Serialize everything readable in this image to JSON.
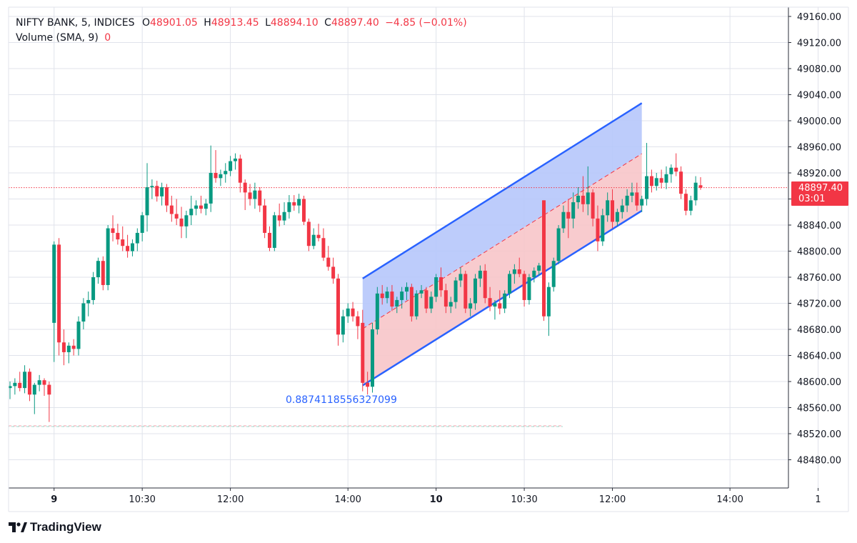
{
  "legend": {
    "symbol": "NIFTY BANK, 5, INDICES",
    "o_label": "O",
    "o_value": "48901.05",
    "h_label": "H",
    "h_value": "48913.45",
    "l_label": "L",
    "l_value": "48894.10",
    "c_label": "C",
    "c_value": "48897.40",
    "change": "−4.85 (−0.01%)",
    "volume_label": "Volume (SMA, 9)",
    "volume_value": "0"
  },
  "price_tag": {
    "price": "48897.40",
    "timer": "03:01"
  },
  "channel_label": "0.8874118556327099",
  "brand": "TradingView",
  "colors": {
    "up": "#089981",
    "down": "#f23645",
    "channel_line": "#2962ff",
    "channel_upper_fill": "#b6c7fb",
    "channel_lower_fill": "#f7c5c9",
    "grid": "#e0e3eb",
    "price_line": "#f23645",
    "text": "#131722"
  },
  "chart_data": {
    "type": "candlestick",
    "symbol": "NIFTY BANK",
    "interval": "5",
    "y_axis_ticks": [
      49160,
      49120,
      49080,
      49040,
      49000,
      48960,
      48920,
      48880,
      48840,
      48800,
      48760,
      48720,
      48680,
      48640,
      48600,
      48560,
      48520,
      48480
    ],
    "y_axis_labels": [
      "49160.00",
      "49120.00",
      "49080.00",
      "49040.00",
      "49000.00",
      "48960.00",
      "48920.00",
      "48880.00",
      "48840.00",
      "48800.00",
      "48760.00",
      "48720.00",
      "48680.00",
      "48640.00",
      "48600.00",
      "48560.00",
      "48520.00",
      "48480.00"
    ],
    "x_axis_labels": [
      {
        "label": "9",
        "bold": true,
        "bar": 9
      },
      {
        "label": "10:30",
        "bold": false,
        "bar": 27
      },
      {
        "label": "12:00",
        "bold": false,
        "bar": 45
      },
      {
        "label": "14:00",
        "bold": false,
        "bar": 69
      },
      {
        "label": "10",
        "bold": true,
        "bar": 87
      },
      {
        "label": "10:30",
        "bold": false,
        "bar": 105
      },
      {
        "label": "12:00",
        "bold": false,
        "bar": 123
      },
      {
        "label": "14:00",
        "bold": false,
        "bar": 147
      },
      {
        "label": "1",
        "bold": false,
        "bar": 165
      }
    ],
    "last_price": 48897.4,
    "dashed_level": 48532,
    "candles": [
      [
        48590,
        48600,
        48573,
        48593
      ],
      [
        48593,
        48605,
        48580,
        48598
      ],
      [
        48598,
        48615,
        48585,
        48590
      ],
      [
        48590,
        48625,
        48582,
        48615
      ],
      [
        48615,
        48620,
        48570,
        48580
      ],
      [
        48580,
        48598,
        48550,
        48595
      ],
      [
        48595,
        48610,
        48585,
        48602
      ],
      [
        48602,
        48605,
        48578,
        48595
      ],
      [
        48595,
        48600,
        48538,
        48580
      ],
      [
        48690,
        48815,
        48630,
        48810
      ],
      [
        48810,
        48820,
        48640,
        48660
      ],
      [
        48660,
        48680,
        48625,
        48645
      ],
      [
        48645,
        48660,
        48628,
        48655
      ],
      [
        48655,
        48665,
        48640,
        48650
      ],
      [
        48650,
        48700,
        48640,
        48692
      ],
      [
        48692,
        48728,
        48680,
        48720
      ],
      [
        48720,
        48738,
        48700,
        48725
      ],
      [
        48725,
        48768,
        48718,
        48760
      ],
      [
        48760,
        48790,
        48750,
        48785
      ],
      [
        48785,
        48792,
        48740,
        48748
      ],
      [
        48748,
        48840,
        48740,
        48835
      ],
      [
        48835,
        48855,
        48815,
        48828
      ],
      [
        48828,
        48842,
        48810,
        48818
      ],
      [
        48818,
        48838,
        48800,
        48808
      ],
      [
        48808,
        48825,
        48790,
        48800
      ],
      [
        48800,
        48818,
        48792,
        48812
      ],
      [
        48812,
        48835,
        48800,
        48828
      ],
      [
        48828,
        48860,
        48815,
        48855
      ],
      [
        48855,
        48935,
        48830,
        48898
      ],
      [
        48898,
        48910,
        48880,
        48900
      ],
      [
        48900,
        48908,
        48876,
        48884
      ],
      [
        48884,
        48905,
        48870,
        48898
      ],
      [
        48898,
        48903,
        48860,
        48870
      ],
      [
        48870,
        48885,
        48845,
        48857
      ],
      [
        48857,
        48880,
        48840,
        48850
      ],
      [
        48850,
        48868,
        48820,
        48838
      ],
      [
        48838,
        48862,
        48820,
        48855
      ],
      [
        48855,
        48885,
        48840,
        48865
      ],
      [
        48865,
        48878,
        48855,
        48870
      ],
      [
        48870,
        48885,
        48858,
        48865
      ],
      [
        48865,
        48880,
        48855,
        48873
      ],
      [
        48873,
        48962,
        48860,
        48920
      ],
      [
        48920,
        48955,
        48905,
        48912
      ],
      [
        48912,
        48925,
        48900,
        48918
      ],
      [
        48918,
        48935,
        48905,
        48923
      ],
      [
        48923,
        48946,
        48915,
        48938
      ],
      [
        48938,
        48950,
        48925,
        48942
      ],
      [
        48942,
        48948,
        48890,
        48905
      ],
      [
        48905,
        48910,
        48863,
        48890
      ],
      [
        48890,
        48903,
        48870,
        48880
      ],
      [
        48880,
        48905,
        48865,
        48893
      ],
      [
        48893,
        48898,
        48860,
        48870
      ],
      [
        48870,
        48880,
        48820,
        48828
      ],
      [
        48828,
        48838,
        48800,
        48805
      ],
      [
        48805,
        48860,
        48800,
        48855
      ],
      [
        48855,
        48873,
        48838,
        48847
      ],
      [
        48847,
        48875,
        48840,
        48860
      ],
      [
        48860,
        48886,
        48850,
        48875
      ],
      [
        48875,
        48886,
        48862,
        48870
      ],
      [
        48870,
        48888,
        48858,
        48880
      ],
      [
        48880,
        48885,
        48840,
        48845
      ],
      [
        48845,
        48850,
        48800,
        48808
      ],
      [
        48808,
        48835,
        48803,
        48825
      ],
      [
        48825,
        48842,
        48815,
        48820
      ],
      [
        48820,
        48835,
        48785,
        48790
      ],
      [
        48790,
        48808,
        48770,
        48776
      ],
      [
        48776,
        48790,
        48750,
        48758
      ],
      [
        48758,
        48765,
        48655,
        48672
      ],
      [
        48672,
        48710,
        48660,
        48700
      ],
      [
        48700,
        48720,
        48690,
        48712
      ],
      [
        48712,
        48722,
        48692,
        48700
      ],
      [
        48700,
        48708,
        48665,
        48685
      ],
      [
        48690,
        48710,
        48585,
        48598
      ],
      [
        48598,
        48615,
        48580,
        48592
      ],
      [
        48592,
        48690,
        48583,
        48680
      ],
      [
        48680,
        48745,
        48672,
        48735
      ],
      [
        48735,
        48748,
        48718,
        48728
      ],
      [
        48728,
        48745,
        48720,
        48738
      ],
      [
        48738,
        48748,
        48708,
        48715
      ],
      [
        48715,
        48730,
        48705,
        48725
      ],
      [
        48725,
        48745,
        48712,
        48738
      ],
      [
        48738,
        48752,
        48725,
        48745
      ],
      [
        48745,
        48750,
        48692,
        48700
      ],
      [
        48700,
        48740,
        48695,
        48735
      ],
      [
        48735,
        48748,
        48728,
        48740
      ],
      [
        48740,
        48745,
        48705,
        48712
      ],
      [
        48712,
        48738,
        48705,
        48730
      ],
      [
        48730,
        48765,
        48722,
        48760
      ],
      [
        48760,
        48775,
        48730,
        48740
      ],
      [
        48740,
        48750,
        48705,
        48715
      ],
      [
        48715,
        48730,
        48705,
        48722
      ],
      [
        48722,
        48760,
        48712,
        48755
      ],
      [
        48755,
        48775,
        48745,
        48765
      ],
      [
        48765,
        48770,
        48705,
        48712
      ],
      [
        48712,
        48728,
        48700,
        48720
      ],
      [
        48720,
        48765,
        48710,
        48758
      ],
      [
        48758,
        48778,
        48745,
        48770
      ],
      [
        48770,
        48780,
        48720,
        48728
      ],
      [
        48728,
        48745,
        48708,
        48715
      ],
      [
        48715,
        48725,
        48695,
        48720
      ],
      [
        48720,
        48740,
        48703,
        48712
      ],
      [
        48712,
        48740,
        48705,
        48735
      ],
      [
        48735,
        48770,
        48728,
        48765
      ],
      [
        48765,
        48780,
        48750,
        48772
      ],
      [
        48772,
        48790,
        48760,
        48765
      ],
      [
        48765,
        48770,
        48715,
        48725
      ],
      [
        48725,
        48765,
        48718,
        48760
      ],
      [
        48760,
        48775,
        48752,
        48770
      ],
      [
        48770,
        48782,
        48762,
        48778
      ],
      [
        48878,
        48878,
        48693,
        48700
      ],
      [
        48700,
        48752,
        48670,
        48745
      ],
      [
        48745,
        48790,
        48738,
        48785
      ],
      [
        48785,
        48840,
        48780,
        48835
      ],
      [
        48835,
        48870,
        48828,
        48860
      ],
      [
        48860,
        48880,
        48820,
        48850
      ],
      [
        48850,
        48890,
        48835,
        48875
      ],
      [
        48875,
        48898,
        48865,
        48885
      ],
      [
        48885,
        48915,
        48860,
        48872
      ],
      [
        48872,
        48930,
        48855,
        48890
      ],
      [
        48890,
        48895,
        48838,
        48850
      ],
      [
        48850,
        48870,
        48800,
        48815
      ],
      [
        48815,
        48865,
        48808,
        48855
      ],
      [
        48855,
        48890,
        48845,
        48878
      ],
      [
        48878,
        48895,
        48835,
        48845
      ],
      [
        48845,
        48865,
        48838,
        48860
      ],
      [
        48860,
        48880,
        48850,
        48870
      ],
      [
        48870,
        48895,
        48860,
        48885
      ],
      [
        48885,
        48905,
        48875,
        48890
      ],
      [
        48890,
        48905,
        48862,
        48870
      ],
      [
        48870,
        48885,
        48860,
        48880
      ],
      [
        48880,
        48966,
        48870,
        48915
      ],
      [
        48915,
        48925,
        48890,
        48900
      ],
      [
        48900,
        48920,
        48893,
        48912
      ],
      [
        48912,
        48925,
        48896,
        48905
      ],
      [
        48905,
        48930,
        48895,
        48918
      ],
      [
        48918,
        48933,
        48905,
        48928
      ],
      [
        48928,
        48950,
        48915,
        48922
      ],
      [
        48922,
        48930,
        48880,
        48888
      ],
      [
        48888,
        48895,
        48855,
        48862
      ],
      [
        48862,
        48885,
        48855,
        48878
      ],
      [
        48878,
        48915,
        48870,
        48905
      ],
      [
        48901.05,
        48913.45,
        48894.1,
        48897.4
      ]
    ],
    "channel": {
      "start_bar": 72,
      "end_bar": 129,
      "start_low": 48594,
      "end_low": 48862,
      "start_high": 48758,
      "end_high": 49027,
      "level_label": "0.8874118556327099"
    }
  }
}
